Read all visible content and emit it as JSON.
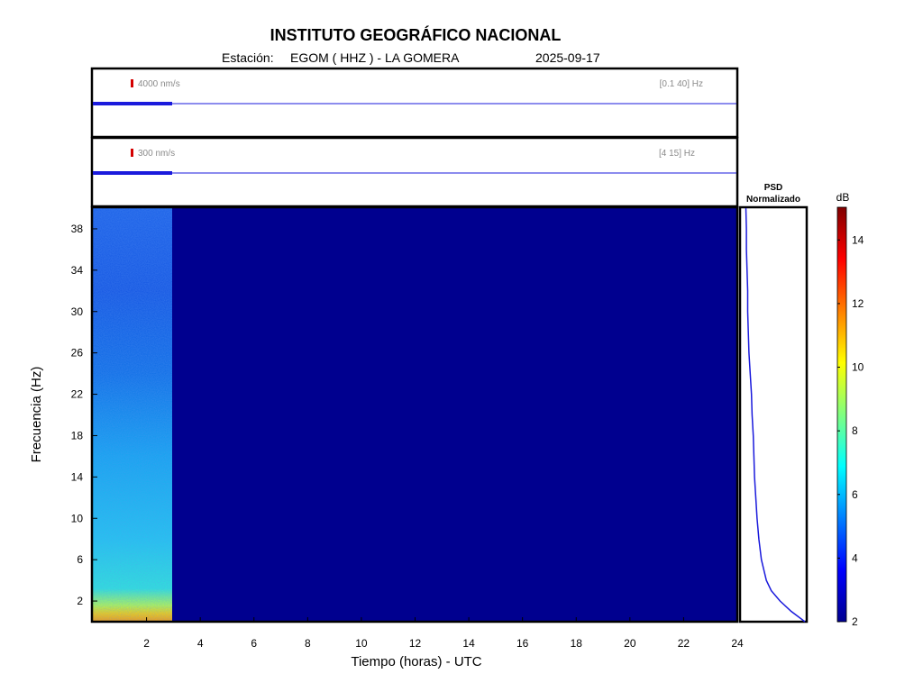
{
  "header": {
    "title": "INSTITUTO GEOGRÁFICO NACIONAL",
    "station_label": "Estación:",
    "station": "EGOM ( HHZ ) - LA GOMERA",
    "date": "2025-09-17"
  },
  "colors": {
    "trace": "#1a1adc",
    "scale_bar": "#d40000",
    "background_spec": "#00008f"
  },
  "chart_data": [
    {
      "type": "line",
      "name": "seismogram-broadband",
      "amplitude_scale": "4000 nm/s",
      "band": "[0.1 40] Hz",
      "x_unit": "horas UTC",
      "xlim": [
        0,
        24
      ],
      "data_until_hour": 3.0
    },
    {
      "type": "line",
      "name": "seismogram-filtered",
      "amplitude_scale": "300 nm/s",
      "band": "[4 15] Hz",
      "x_unit": "horas UTC",
      "xlim": [
        0,
        24
      ],
      "data_until_hour": 3.0
    },
    {
      "type": "heatmap",
      "name": "spectrogram",
      "xlabel": "Tiempo (horas) - UTC",
      "ylabel": "Frecuencia  (Hz)",
      "xlim": [
        0,
        24
      ],
      "ylim": [
        0,
        40
      ],
      "x_ticks": [
        "2",
        "4",
        "6",
        "8",
        "10",
        "12",
        "14",
        "16",
        "18",
        "20",
        "22",
        "24"
      ],
      "y_ticks": [
        "2",
        "6",
        "10",
        "14",
        "18",
        "22",
        "26",
        "30",
        "34",
        "38"
      ],
      "data_until_hour": 3.0,
      "colorbar": {
        "label": "dB",
        "range": [
          2,
          15
        ],
        "ticks": [
          "2",
          "4",
          "6",
          "8",
          "10",
          "12",
          "14"
        ]
      }
    },
    {
      "type": "line",
      "name": "psd-normalized",
      "title_line1": "PSD",
      "title_line2": "Normalizado",
      "ylim": [
        0,
        40
      ],
      "points": [
        {
          "freq": 0.0,
          "level": 1.0
        },
        {
          "freq": 1.0,
          "level": 0.78
        },
        {
          "freq": 2.0,
          "level": 0.6
        },
        {
          "freq": 3.0,
          "level": 0.46
        },
        {
          "freq": 4.0,
          "level": 0.38
        },
        {
          "freq": 6.0,
          "level": 0.3
        },
        {
          "freq": 8.0,
          "level": 0.26
        },
        {
          "freq": 10.0,
          "level": 0.23
        },
        {
          "freq": 12.0,
          "level": 0.21
        },
        {
          "freq": 14.0,
          "level": 0.19
        },
        {
          "freq": 16.0,
          "level": 0.18
        },
        {
          "freq": 18.0,
          "level": 0.17
        },
        {
          "freq": 20.0,
          "level": 0.15
        },
        {
          "freq": 22.0,
          "level": 0.14
        },
        {
          "freq": 24.0,
          "level": 0.12
        },
        {
          "freq": 26.0,
          "level": 0.1
        },
        {
          "freq": 28.0,
          "level": 0.09
        },
        {
          "freq": 30.0,
          "level": 0.08
        },
        {
          "freq": 32.0,
          "level": 0.08
        },
        {
          "freq": 34.0,
          "level": 0.07
        },
        {
          "freq": 36.0,
          "level": 0.06
        },
        {
          "freq": 38.0,
          "level": 0.06
        },
        {
          "freq": 40.0,
          "level": 0.05
        }
      ]
    }
  ]
}
